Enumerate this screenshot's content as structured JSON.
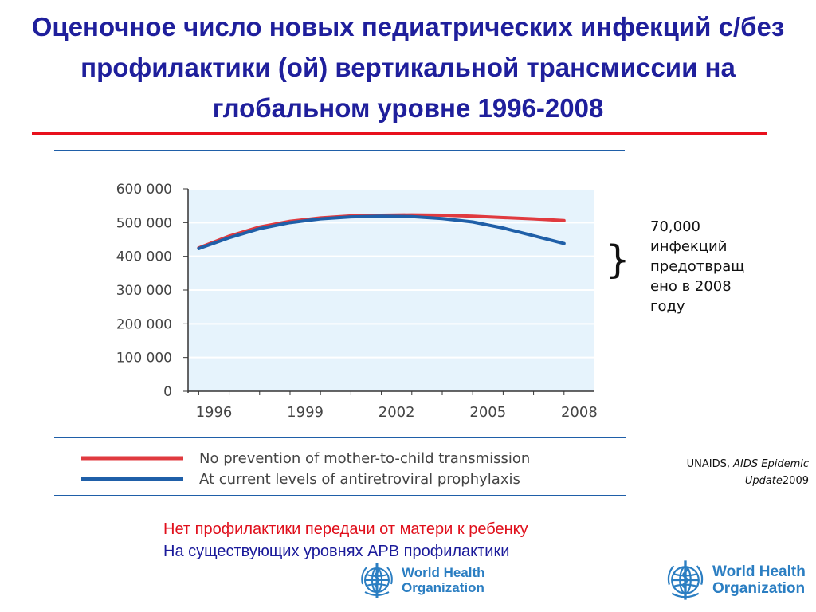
{
  "title": "Оценочное число новых педиатрических инфекций с/без профилактики (ой) вертикальной трансмиссии на глобальном уровне 1996-2008",
  "annotation": "70,000\nинфекций\nпредотвращ\nено в 2008\nгоду",
  "source": {
    "org": "UNAIDS, ",
    "title": "AIDS Epidemic Update",
    "year": "2009"
  },
  "ru_legend": {
    "red": "Нет профилактики передачи от матери к ребенку",
    "blue": "На существующих уровнях АРВ профилактики"
  },
  "logo": {
    "text": "World Health\nOrganization",
    "icon": "who-emblem-icon"
  },
  "colors": {
    "title": "#1f1f9c",
    "series_red": "#e03a3f",
    "series_blue": "#1f5fa8",
    "plot_bg": "#e6f3fc",
    "legend_red_text": "#e0101c",
    "legend_blue_text": "#1a1a9a"
  },
  "chart_data": {
    "type": "line",
    "x": [
      1995.5,
      1996.5,
      1997.5,
      1998.5,
      1999.5,
      2000.5,
      2001.5,
      2002.5,
      2003.5,
      2004.5,
      2005.5,
      2006.5,
      2007.5
    ],
    "xticks": [
      "1996",
      "1999",
      "2002",
      "2005",
      "2008"
    ],
    "yticks": [
      "0",
      "100 000",
      "200 000",
      "300 000",
      "400 000",
      "500 000",
      "600 000"
    ],
    "ylim": [
      0,
      600000
    ],
    "grid": true,
    "series": [
      {
        "name": "No prevention of mother-to-child transmission",
        "values": [
          425000,
          460000,
          487000,
          504000,
          514000,
          520000,
          522000,
          523000,
          522000,
          519000,
          515000,
          511000,
          506000
        ]
      },
      {
        "name": "At current levels of antiretroviral prophylaxis",
        "values": [
          423000,
          455000,
          482000,
          500000,
          511000,
          517000,
          519000,
          518000,
          512000,
          502000,
          484000,
          461000,
          438000
        ]
      }
    ]
  }
}
